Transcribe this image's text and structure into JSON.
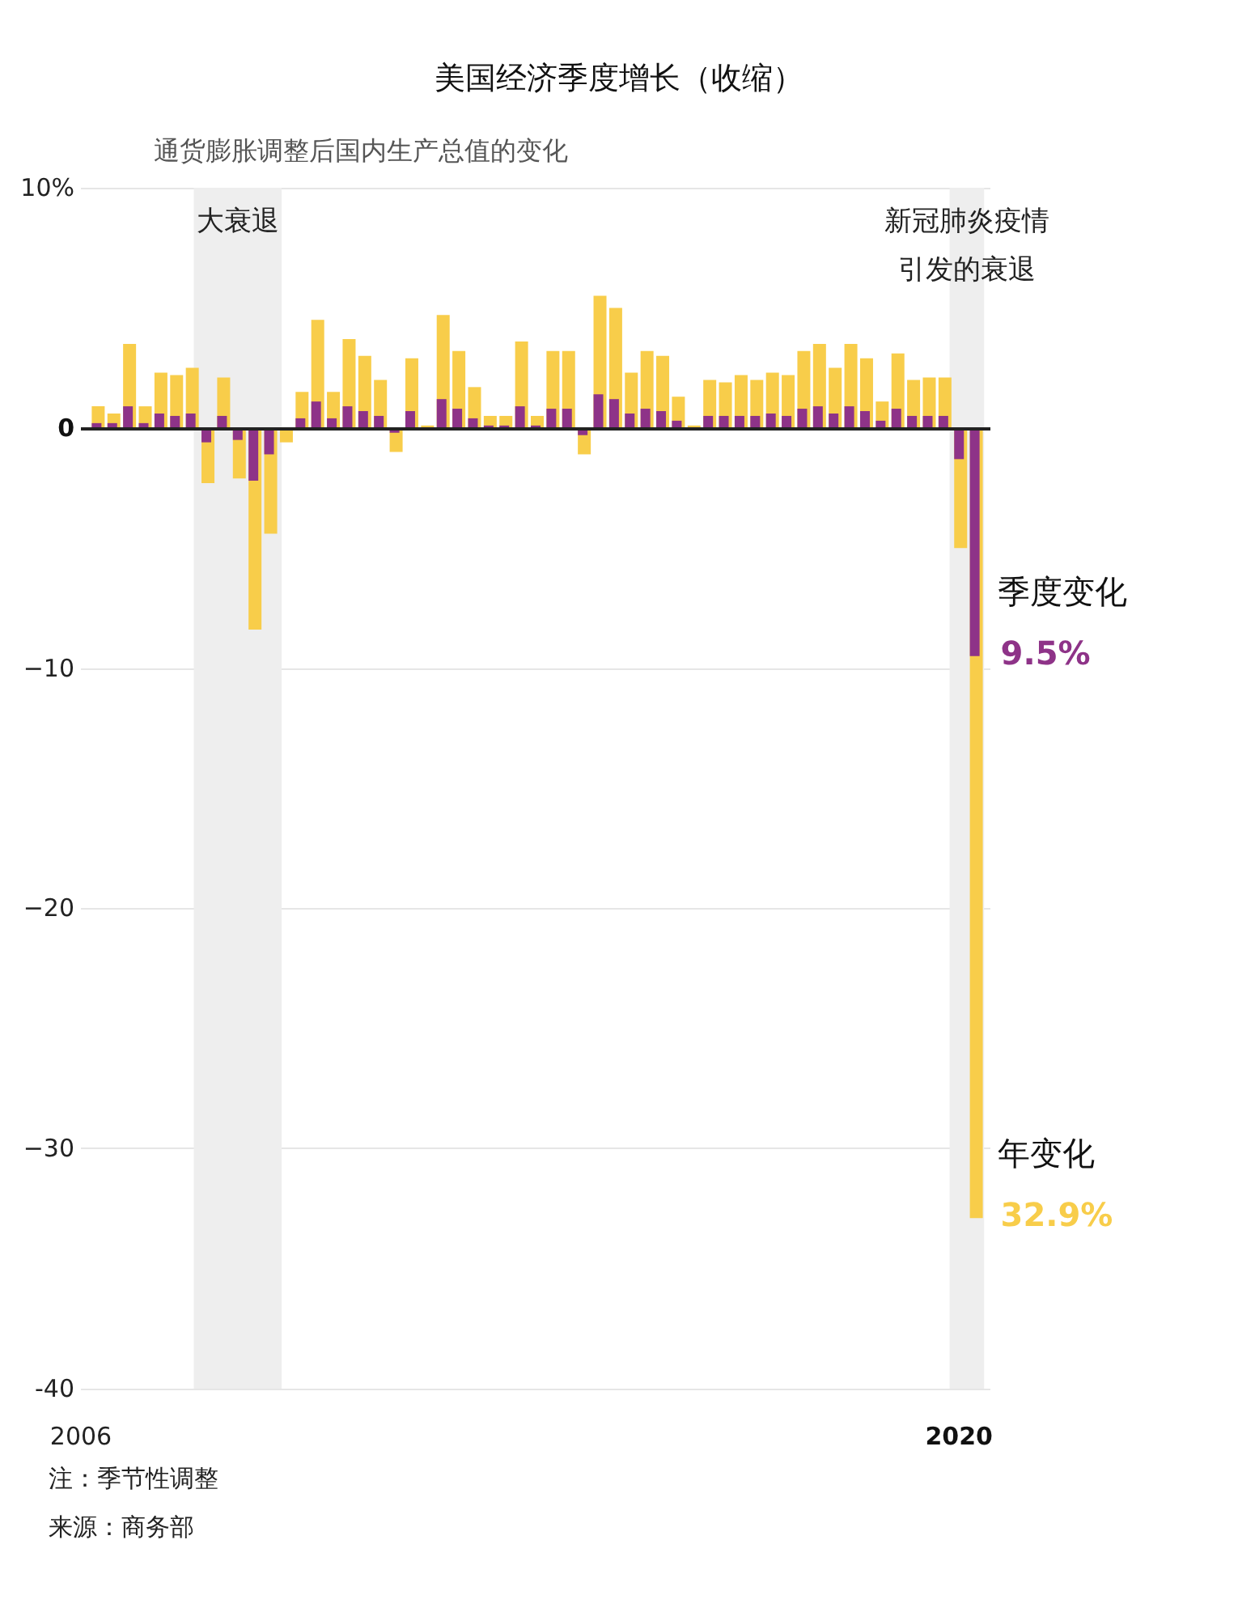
{
  "chart_data": {
    "type": "bar",
    "title": "美国经济季度增长（收缩）",
    "subtitle": "通货膨胀调整后国内生产总值的变化",
    "x": [
      2006.25,
      2006.5,
      2006.75,
      2007,
      2007.25,
      2007.5,
      2007.75,
      2008,
      2008.25,
      2008.5,
      2008.75,
      2009,
      2009.25,
      2009.5,
      2009.75,
      2010,
      2010.25,
      2010.5,
      2010.75,
      2011,
      2011.25,
      2011.5,
      2011.75,
      2012,
      2012.25,
      2012.5,
      2012.75,
      2013,
      2013.25,
      2013.5,
      2013.75,
      2014,
      2014.25,
      2014.5,
      2014.75,
      2015,
      2015.25,
      2015.5,
      2015.75,
      2016,
      2016.25,
      2016.5,
      2016.75,
      2017,
      2017.25,
      2017.5,
      2017.75,
      2018,
      2018.25,
      2018.5,
      2018.75,
      2019,
      2019.25,
      2019.5,
      2019.75,
      2020,
      2020.25
    ],
    "series": [
      {
        "name": "年变化",
        "color": "#f8cd4a",
        "values": [
          0.9,
          0.6,
          3.5,
          0.9,
          2.3,
          2.2,
          2.5,
          -2.3,
          2.1,
          -2.1,
          -8.4,
          -4.4,
          -0.6,
          1.5,
          4.5,
          1.5,
          3.7,
          3.0,
          2.0,
          -1.0,
          2.9,
          0.1,
          4.7,
          3.2,
          1.7,
          0.5,
          0.5,
          3.6,
          0.5,
          3.2,
          3.2,
          -1.1,
          5.5,
          5.0,
          2.3,
          3.2,
          3.0,
          1.3,
          0.1,
          2.0,
          1.9,
          2.2,
          2.0,
          2.3,
          2.2,
          3.2,
          3.5,
          2.5,
          3.5,
          2.9,
          1.1,
          3.1,
          2.0,
          2.1,
          2.1,
          -5.0,
          -32.9
        ]
      },
      {
        "name": "季度变化",
        "color": "#8e3388",
        "values": [
          0.2,
          0.2,
          0.9,
          0.2,
          0.6,
          0.5,
          0.6,
          -0.6,
          0.5,
          -0.5,
          -2.2,
          -1.1,
          null,
          0.4,
          1.1,
          0.4,
          0.9,
          0.7,
          0.5,
          -0.2,
          0.7,
          0.0,
          1.2,
          0.8,
          0.4,
          0.1,
          0.1,
          0.9,
          0.1,
          0.8,
          0.8,
          -0.3,
          1.4,
          1.2,
          0.6,
          0.8,
          0.7,
          0.3,
          0.0,
          0.5,
          0.5,
          0.5,
          0.5,
          0.6,
          0.5,
          0.8,
          0.9,
          0.6,
          0.9,
          0.7,
          0.3,
          0.8,
          0.5,
          0.5,
          0.5,
          -1.3,
          -9.5
        ]
      }
    ],
    "xlim": [
      2006,
      2020.5
    ],
    "xticks": [
      2006,
      2020
    ],
    "ylim": [
      -40,
      10
    ],
    "yticks": [
      -40,
      {
        "value": -30,
        "label": "−30"
      },
      {
        "value": -20,
        "label": "−20"
      },
      {
        "value": -10,
        "label": "−10"
      },
      0,
      {
        "value": 10,
        "label": "10%"
      }
    ],
    "grid": "y",
    "legend": false,
    "bands": [
      {
        "axis": "x",
        "from": 2007.8,
        "to": 2009.2,
        "label": "大衰退",
        "color": "#eeeeee"
      },
      {
        "axis": "x",
        "from": 2019.85,
        "to": 2020.4,
        "label": "新冠肺炎疫情引发的衰退",
        "color": "#eeeeee"
      }
    ],
    "ref_lines": [
      {
        "axis": "y",
        "value": 0,
        "label": null,
        "color": "#222222"
      }
    ],
    "annotations": [
      {
        "text": "32.9%",
        "x": 2020.25,
        "y": -32.9
      },
      {
        "text": "9.5%",
        "x": 2020.25,
        "y": -9.5
      },
      "注：季节性调整",
      "来源：商务部"
    ]
  }
}
